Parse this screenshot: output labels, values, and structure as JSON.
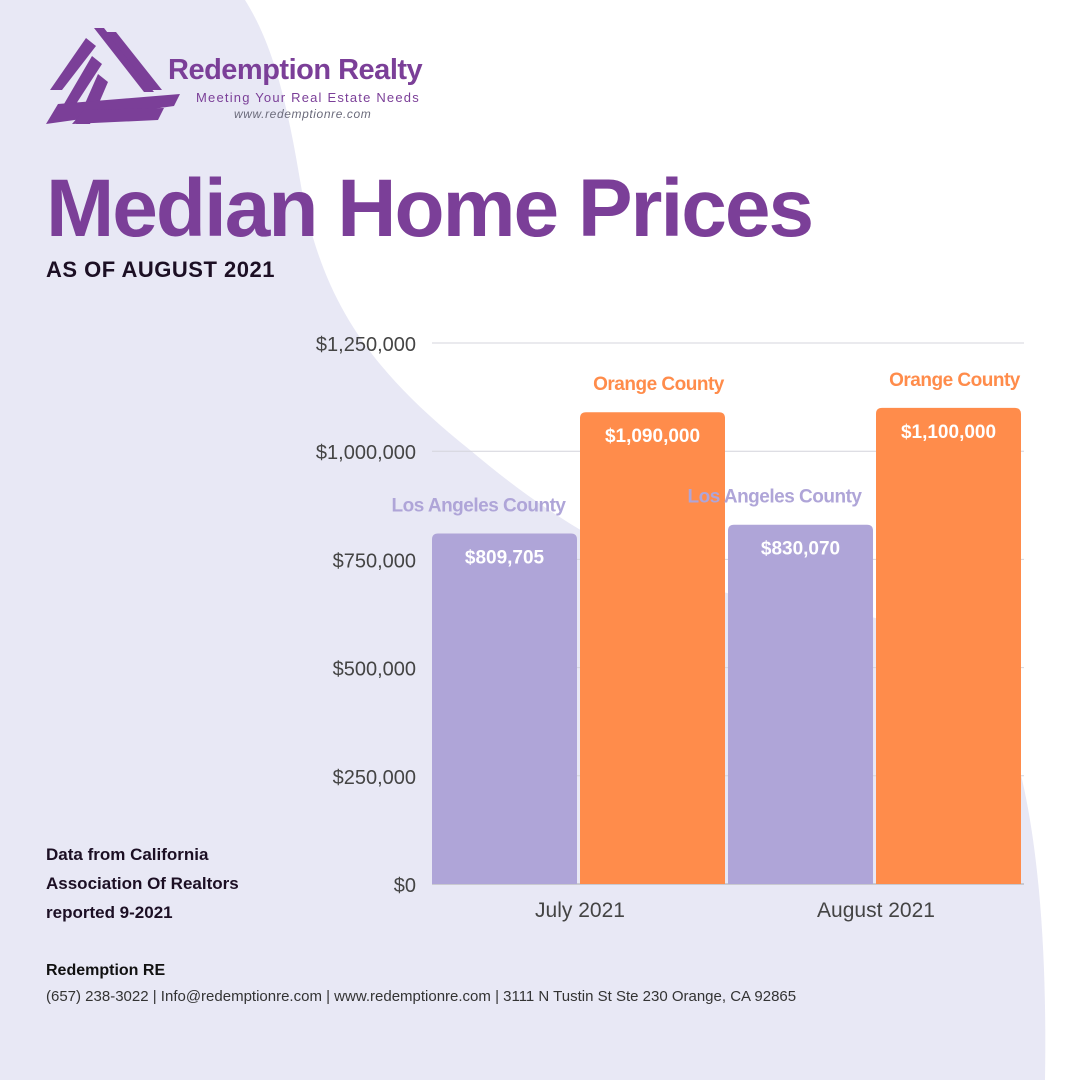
{
  "brand": {
    "name": "Redemption Realty",
    "tagline": "Meeting Your Real Estate Needs",
    "website": "www.redemptionre.com",
    "color": "#7b3f98"
  },
  "header": {
    "title": "Median Home Prices",
    "subtitle": "AS OF AUGUST 2021"
  },
  "source_note": "Data from California Association Of Realtors reported 9-2021",
  "footer": {
    "company": "Redemption RE",
    "contact": "(657) 238-3022 | Info@redemptionre.com | www.redemptionre.com | 3111 N Tustin St Ste 230 Orange, CA 92865"
  },
  "chart_data": {
    "type": "bar",
    "title": "",
    "xlabel": "",
    "ylabel": "",
    "categories": [
      "July 2021",
      "August 2021"
    ],
    "series": [
      {
        "name": "Los Angeles County",
        "values": [
          809705,
          830070
        ],
        "value_labels": [
          "$809,705",
          "$830,070"
        ],
        "color": "#afa5d8"
      },
      {
        "name": "Orange County",
        "values": [
          1090000,
          1100000
        ],
        "value_labels": [
          "$1,090,000",
          "$1,100,000"
        ],
        "color": "#ff8c4b"
      }
    ],
    "ylim": [
      0,
      1250000
    ],
    "yticks": [
      0,
      250000,
      500000,
      750000,
      1000000,
      1250000
    ],
    "ytick_labels": [
      "$0",
      "$250,000",
      "$500,000",
      "$750,000",
      "$1,000,000",
      "$1,250,000"
    ],
    "grid": true,
    "legend": "none"
  }
}
